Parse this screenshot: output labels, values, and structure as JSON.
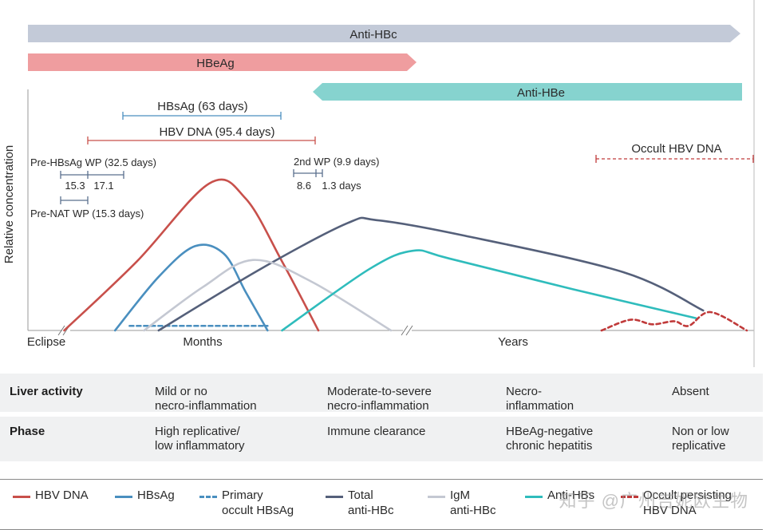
{
  "colors": {
    "hbv_dna": "#c8504b",
    "hbsag": "#4a8fbf",
    "primary_occult": "#4a8fbf",
    "total_anti_hbc": "#55607a",
    "igm_anti_hbc": "#c4c8d2",
    "anti_hbs": "#2fbcbc",
    "occult_dna": "#c03a3a",
    "arrow_anti_hbc": "#c3cad8",
    "arrow_hbeag": "#ef9d9f",
    "arrow_anti_hbe": "#86d3cf",
    "row_bg": "#f0f1f2"
  },
  "arrows": {
    "anti_hbc": "Anti-HBc",
    "hbeag": "HBeAg",
    "anti_hbe": "Anti-HBe"
  },
  "annotations": {
    "hbsag_period": "HBsAg (63 days)",
    "hbv_dna_period": "HBV DNA (95.4 days)",
    "pre_hbsag_wp": "Pre-HBsAg WP (32.5 days)",
    "pre_hbsag_split_a": "15.3",
    "pre_hbsag_split_b": "17.1",
    "pre_nat_wp": "Pre-NAT WP (15.3 days)",
    "second_wp": "2nd WP (9.9 days)",
    "second_wp_split_a": "8.6",
    "second_wp_split_b": "1.3 days",
    "occult_hbv_dna": "Occult HBV DNA"
  },
  "chart_data": {
    "type": "line",
    "ylabel": "Relative concentration",
    "x_ticks": [
      "Eclipse",
      "Months",
      "Years"
    ],
    "series": [
      {
        "name": "HBV DNA",
        "key": "hbv_dna",
        "dash": false,
        "points": [
          [
            0.05,
            0
          ],
          [
            0.15,
            0.45
          ],
          [
            0.25,
            0.96
          ],
          [
            0.3,
            0.86
          ],
          [
            0.35,
            0.45
          ],
          [
            0.4,
            0
          ]
        ]
      },
      {
        "name": "HBsAg",
        "key": "hbsag",
        "dash": false,
        "points": [
          [
            0.12,
            0
          ],
          [
            0.18,
            0.35
          ],
          [
            0.23,
            0.55
          ],
          [
            0.27,
            0.5
          ],
          [
            0.3,
            0.25
          ],
          [
            0.33,
            0
          ]
        ]
      },
      {
        "name": "Primary occult HBsAg",
        "key": "primary_occult",
        "dash": true,
        "points": [
          [
            0.14,
            0.03
          ],
          [
            0.33,
            0.03
          ]
        ]
      },
      {
        "name": "Total anti-HBc",
        "key": "total_anti_hbc",
        "dash": false,
        "points": [
          [
            0.18,
            0
          ],
          [
            0.32,
            0.4
          ],
          [
            0.44,
            0.7
          ],
          [
            0.48,
            0.72
          ],
          [
            0.6,
            0.62
          ],
          [
            0.82,
            0.38
          ],
          [
            0.93,
            0.13
          ]
        ]
      },
      {
        "name": "IgM anti-HBc",
        "key": "igm_anti_hbc",
        "dash": false,
        "points": [
          [
            0.16,
            0
          ],
          [
            0.24,
            0.28
          ],
          [
            0.31,
            0.46
          ],
          [
            0.39,
            0.32
          ],
          [
            0.5,
            0
          ]
        ]
      },
      {
        "name": "Anti-HBs",
        "key": "anti_hbs",
        "dash": false,
        "points": [
          [
            0.35,
            0
          ],
          [
            0.47,
            0.4
          ],
          [
            0.53,
            0.52
          ],
          [
            0.58,
            0.47
          ],
          [
            0.75,
            0.27
          ],
          [
            0.92,
            0.08
          ]
        ]
      },
      {
        "name": "Occult HBV DNA",
        "key": "occult_dna",
        "dash": true,
        "points": [
          [
            0.79,
            0
          ],
          [
            0.83,
            0.07
          ],
          [
            0.86,
            0.04
          ],
          [
            0.89,
            0.06
          ],
          [
            0.91,
            0.03
          ],
          [
            0.94,
            0.12
          ],
          [
            0.99,
            0
          ]
        ]
      }
    ]
  },
  "table": {
    "rows": [
      {
        "header": "Liver activity",
        "cells": [
          "Mild or no\nnecro-inflammation",
          "Moderate-to-severe\nnecro-inflammation",
          "Necro-\ninflammation",
          "Absent"
        ]
      },
      {
        "header": "Phase",
        "cells": [
          "High replicative/\nlow inflammatory",
          "Immune clearance",
          "HBeAg-negative\nchronic hepatitis",
          "Non or low\nreplicative"
        ]
      }
    ]
  },
  "legend": {
    "hbv_dna": "HBV DNA",
    "hbsag": "HBsAg",
    "primary_occult": "Primary\noccult HBsAg",
    "total_anti_hbc": "Total\nanti-HBc",
    "igm_anti_hbc": "IgM\nanti-HBc",
    "anti_hbs": "Anti-HBs",
    "occult_dna": "Occult persisting\nHBV DNA"
  },
  "watermark": "知乎 @广州吉妮欧生物"
}
